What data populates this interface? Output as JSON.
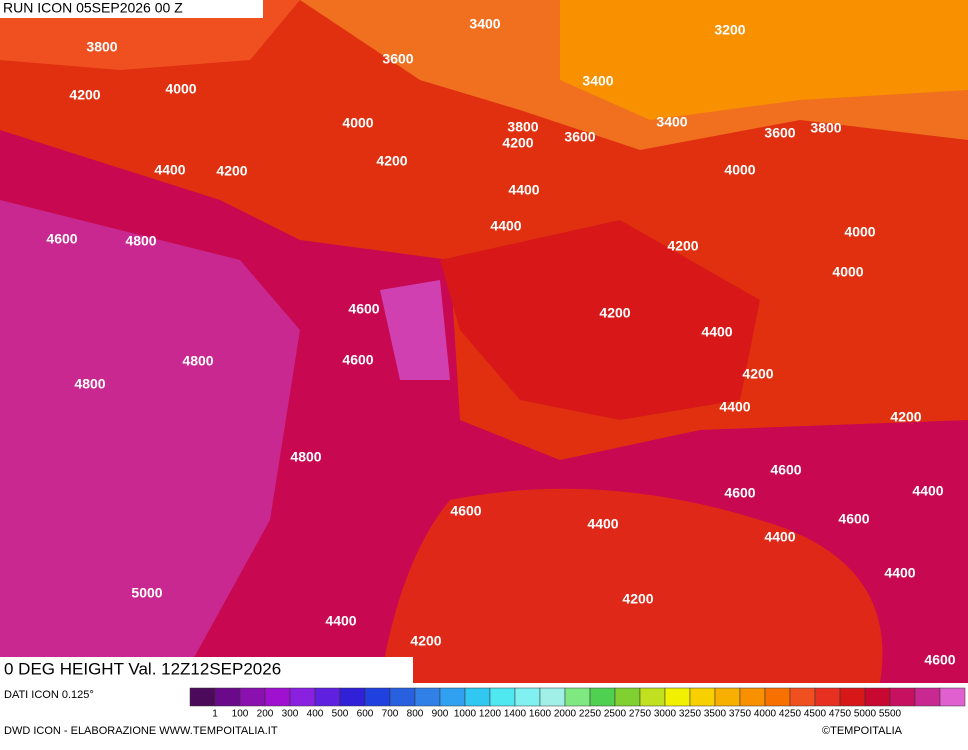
{
  "header": {
    "run": "RUN ICON 05SEP2026 00 Z"
  },
  "footer": {
    "field": "0 DEG HEIGHT Val. 12Z12SEP2026",
    "source": "DATI ICON 0.125°",
    "credit": "DWD ICON - ELABORAZIONE WWW.TEMPOITALIA.IT",
    "copyright": "©TEMPOITALIA"
  },
  "contour_labels": [
    3400,
    3200,
    3800,
    3600,
    3400,
    4200,
    4000,
    4000,
    3800,
    3600,
    3400,
    3600,
    3800,
    4200,
    4400,
    4200,
    4200,
    4000,
    4400,
    4400,
    4600,
    4800,
    4200,
    4000,
    4000,
    4600,
    4200,
    4400,
    4600,
    4800,
    4800,
    4200,
    4400,
    4200,
    4800,
    4600,
    4600,
    4400,
    4600,
    4400,
    4600,
    4400,
    5000,
    4400,
    4200,
    4400,
    4200,
    4600
  ],
  "legend": {
    "colors": [
      "#4b0b5a",
      "#6a0a8a",
      "#8a10b0",
      "#a010d0",
      "#8a20e0",
      "#6020e0",
      "#3020d8",
      "#2040e0",
      "#2860e0",
      "#3080e8",
      "#30a0f0",
      "#30c8f0",
      "#50e8f0",
      "#80f0f0",
      "#a0f0e8",
      "#80e880",
      "#50d050",
      "#80d030",
      "#c0e020",
      "#f0f000",
      "#f8d000",
      "#f8b000",
      "#f89000",
      "#f87000",
      "#f05020",
      "#e83020",
      "#d81818",
      "#c80830",
      "#c81060",
      "#c82890",
      "#e060d0"
    ],
    "labels": [
      1,
      100,
      200,
      300,
      400,
      500,
      600,
      700,
      800,
      900,
      1000,
      1200,
      1400,
      1600,
      2000,
      2250,
      2500,
      2750,
      3000,
      3250,
      3500,
      3750,
      4000,
      4250,
      4500,
      4750,
      5000,
      5500
    ]
  }
}
